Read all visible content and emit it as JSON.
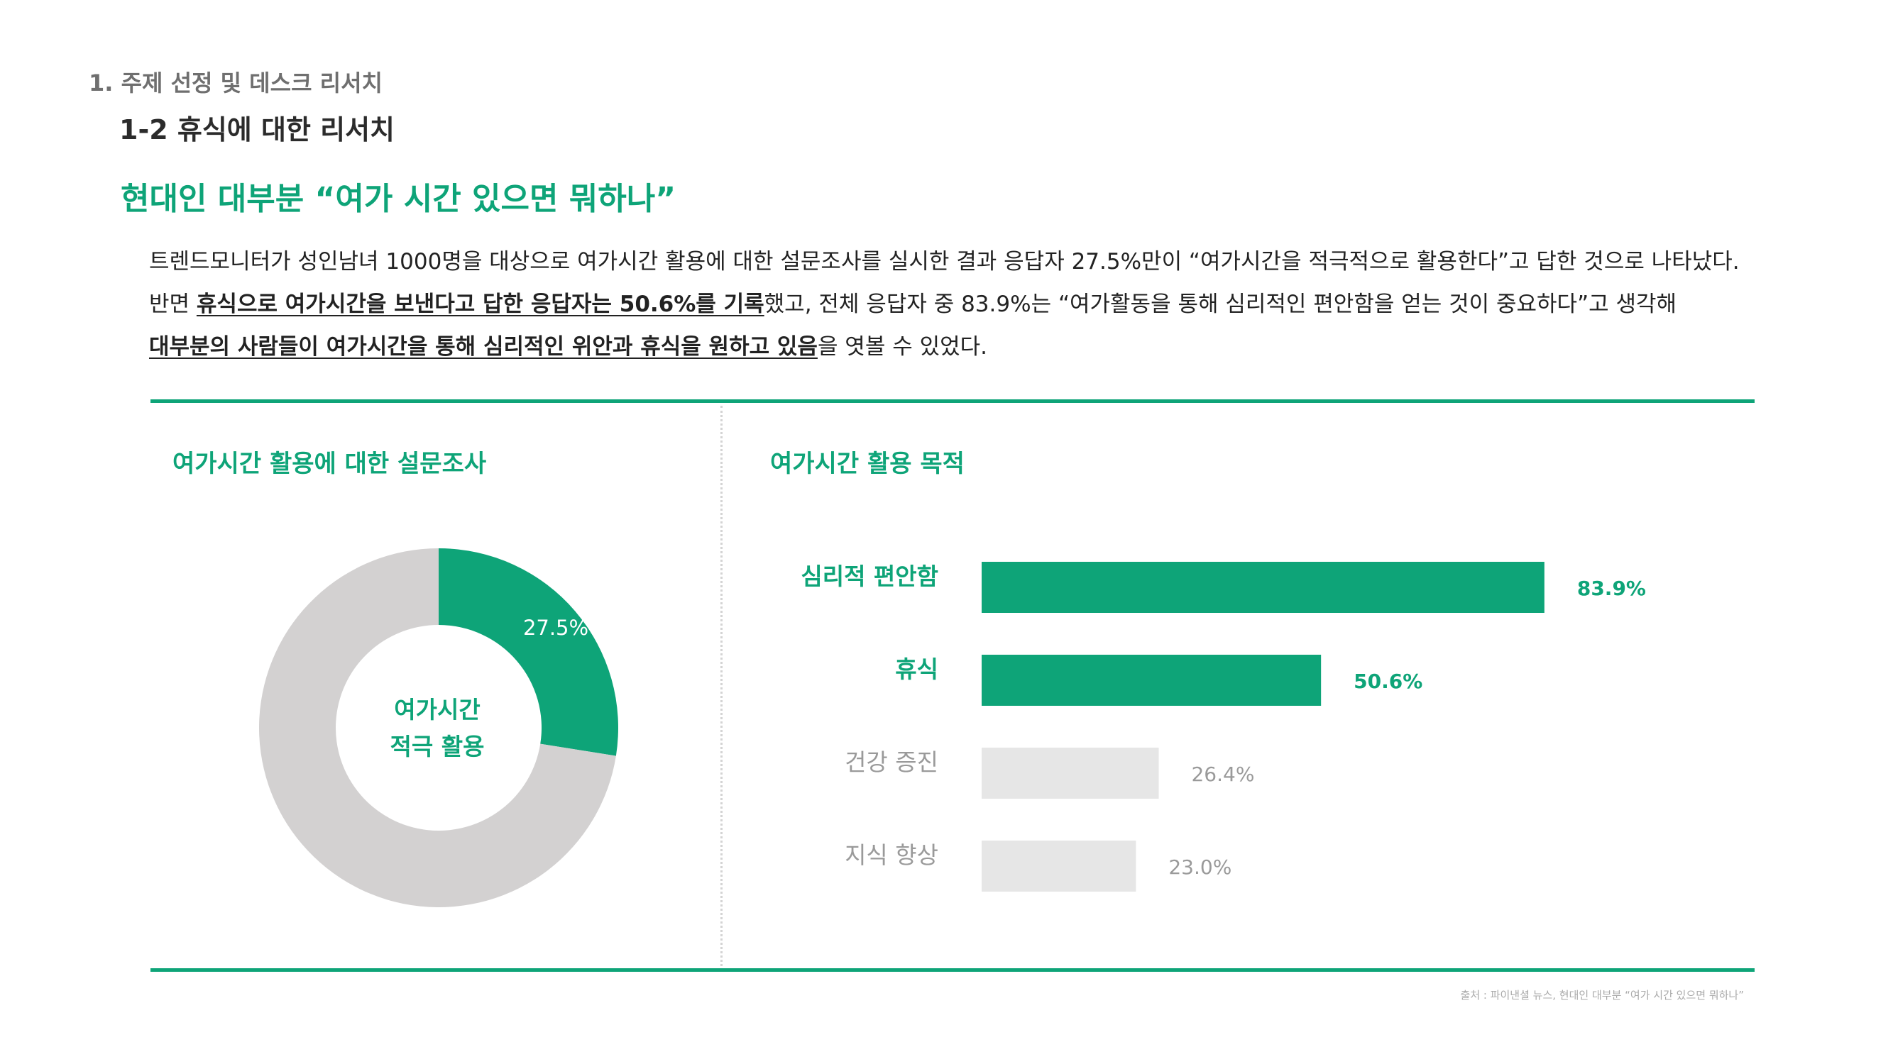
{
  "header": {
    "section": "1. 주제 선정 및 데스크 리서치",
    "subsection": "1-2 휴식에 대한 리서치",
    "headline": "현대인 대부분 “여가 시간 있으면 뭐하나”"
  },
  "body": {
    "para1": "트렌드모니터가 성인남녀 1000명을 대상으로 여가시간 활용에 대한 설문조사를 실시한 결과 응답자 27.5%만이 “여가시간을 적극적으로 활용한다”고 답한 것으로 나타났다.",
    "para2_a": "반면 ",
    "para2_b": "휴식으로 여가시간을 보낸다고 답한 응답자는 50.6%를 기록",
    "para2_c": "했고, 전체 응답자 중 83.9%는 “여가활동을 통해 심리적인 편안함을 얻는 것이 중요하다”고 생각해",
    "para3_a": "대부분의 사람들이 여가시간을 통해 심리적인 위안과 휴식을 원하고 있음",
    "para3_b": "을 엿볼 수 있었다."
  },
  "donut": {
    "title": "여가시간 활용에 대한 설문조사",
    "center_line1": "여가시간",
    "center_line2": "적극 활용"
  },
  "bars": {
    "title": "여가시간 활용 목적"
  },
  "source": "출처 : 파이낸셜 뉴스, 현대인 대부분 “여가 시간 있으면 뭐하나”",
  "colors": {
    "accent": "#0ea478",
    "donut_rest": "#d3d1d1",
    "bar_muted": "#e6e6e6",
    "text_muted": "#9a9a9a"
  },
  "chart_data": [
    {
      "type": "pie",
      "title": "여가시간 활용에 대한 설문조사",
      "values": [
        27.5,
        72.5
      ],
      "labels": [
        "27.5%",
        ""
      ]
    },
    {
      "type": "bar",
      "orientation": "horizontal",
      "title": "여가시간 활용 목적",
      "categories": [
        "심리적 편안함",
        "휴식",
        "건강 증진",
        "지식 향상"
      ],
      "values": [
        83.9,
        50.6,
        26.4,
        23.0
      ],
      "labels": [
        "83.9%",
        "50.6%",
        "26.4%",
        "23.0%"
      ],
      "highlighted": [
        true,
        true,
        false,
        false
      ]
    }
  ]
}
